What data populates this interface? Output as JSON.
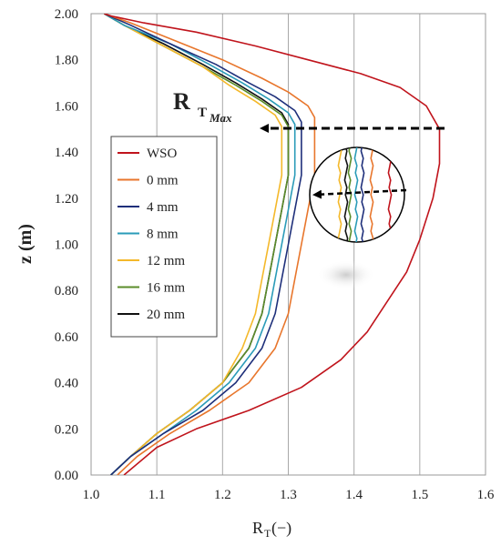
{
  "chart_data": {
    "type": "line",
    "title": "",
    "xlabel": "R",
    "xlabel_sub": "T",
    "xlabel_unit": " (−)",
    "ylabel": "z (m)",
    "xlim": [
      1.0,
      1.6
    ],
    "ylim": [
      0.0,
      2.0
    ],
    "x_ticks": [
      "1.0",
      "1.1",
      "1.2",
      "1.3",
      "1.4",
      "1.5",
      "1.6"
    ],
    "y_ticks": [
      "0.00",
      "0.20",
      "0.40",
      "0.60",
      "0.80",
      "1.00",
      "1.20",
      "1.40",
      "1.60",
      "1.80",
      "2.00"
    ],
    "grid": "vertical",
    "legend_position": "left",
    "annotation": {
      "main": "R",
      "sub": "T",
      "subsub": "Max"
    },
    "series": [
      {
        "name": "WSO",
        "color": "#c0141c",
        "x": [
          1.05,
          1.1,
          1.16,
          1.24,
          1.32,
          1.38,
          1.42,
          1.45,
          1.48,
          1.5,
          1.52,
          1.53,
          1.53,
          1.51,
          1.47,
          1.41,
          1.33,
          1.25,
          1.16,
          1.08,
          1.03,
          1.02
        ],
        "y": [
          0.0,
          0.12,
          0.2,
          0.28,
          0.38,
          0.5,
          0.62,
          0.75,
          0.88,
          1.02,
          1.2,
          1.35,
          1.5,
          1.6,
          1.68,
          1.74,
          1.8,
          1.86,
          1.92,
          1.96,
          1.99,
          2.0
        ]
      },
      {
        "name": "0 mm",
        "color": "#e8762c",
        "x": [
          1.04,
          1.07,
          1.12,
          1.18,
          1.24,
          1.28,
          1.3,
          1.31,
          1.32,
          1.33,
          1.34,
          1.34,
          1.34,
          1.33,
          1.3,
          1.26,
          1.2,
          1.13,
          1.06,
          1.02
        ],
        "y": [
          0.0,
          0.08,
          0.18,
          0.28,
          0.4,
          0.55,
          0.7,
          0.85,
          1.0,
          1.15,
          1.3,
          1.45,
          1.55,
          1.6,
          1.66,
          1.72,
          1.8,
          1.88,
          1.96,
          2.0
        ]
      },
      {
        "name": "4 mm",
        "color": "#1e2f7a",
        "x": [
          1.03,
          1.06,
          1.11,
          1.17,
          1.22,
          1.26,
          1.28,
          1.29,
          1.3,
          1.31,
          1.32,
          1.32,
          1.32,
          1.31,
          1.28,
          1.24,
          1.19,
          1.12,
          1.06,
          1.02
        ],
        "y": [
          0.0,
          0.08,
          0.18,
          0.28,
          0.4,
          0.55,
          0.7,
          0.85,
          1.0,
          1.15,
          1.3,
          1.45,
          1.53,
          1.58,
          1.64,
          1.7,
          1.78,
          1.87,
          1.95,
          2.0
        ]
      },
      {
        "name": "8 mm",
        "color": "#2a9bb8",
        "x": [
          1.03,
          1.06,
          1.11,
          1.16,
          1.21,
          1.25,
          1.27,
          1.28,
          1.29,
          1.3,
          1.31,
          1.31,
          1.31,
          1.3,
          1.27,
          1.23,
          1.18,
          1.12,
          1.05,
          1.02
        ],
        "y": [
          0.0,
          0.08,
          0.18,
          0.28,
          0.4,
          0.55,
          0.7,
          0.85,
          1.0,
          1.15,
          1.3,
          1.45,
          1.52,
          1.57,
          1.63,
          1.7,
          1.78,
          1.87,
          1.95,
          2.0
        ]
      },
      {
        "name": "12 mm",
        "color": "#f4b82a",
        "x": [
          1.03,
          1.06,
          1.1,
          1.15,
          1.2,
          1.23,
          1.25,
          1.26,
          1.27,
          1.28,
          1.29,
          1.29,
          1.29,
          1.28,
          1.25,
          1.21,
          1.17,
          1.11,
          1.05,
          1.02
        ],
        "y": [
          0.0,
          0.08,
          0.18,
          0.28,
          0.4,
          0.55,
          0.7,
          0.85,
          1.0,
          1.15,
          1.3,
          1.45,
          1.51,
          1.56,
          1.62,
          1.69,
          1.77,
          1.86,
          1.95,
          2.0
        ]
      },
      {
        "name": "16 mm",
        "color": "#5b8c2a",
        "x": [
          1.03,
          1.06,
          1.1,
          1.15,
          1.2,
          1.24,
          1.26,
          1.27,
          1.28,
          1.29,
          1.3,
          1.3,
          1.3,
          1.29,
          1.26,
          1.22,
          1.17,
          1.11,
          1.05,
          1.02
        ],
        "y": [
          0.0,
          0.08,
          0.18,
          0.28,
          0.4,
          0.55,
          0.7,
          0.85,
          1.0,
          1.15,
          1.3,
          1.45,
          1.51,
          1.56,
          1.62,
          1.69,
          1.77,
          1.86,
          1.95,
          2.0
        ]
      },
      {
        "name": "20 mm",
        "color": "#111111",
        "x": [
          1.03,
          1.06,
          1.1,
          1.15,
          1.2,
          1.24,
          1.26,
          1.27,
          1.28,
          1.29,
          1.3,
          1.3,
          1.3,
          1.29,
          1.26,
          1.22,
          1.17,
          1.11,
          1.05,
          1.02
        ],
        "y": [
          0.0,
          0.08,
          0.18,
          0.28,
          0.4,
          0.55,
          0.7,
          0.85,
          1.0,
          1.15,
          1.3,
          1.45,
          1.52,
          1.57,
          1.63,
          1.7,
          1.78,
          1.87,
          1.95,
          2.0
        ]
      }
    ]
  }
}
